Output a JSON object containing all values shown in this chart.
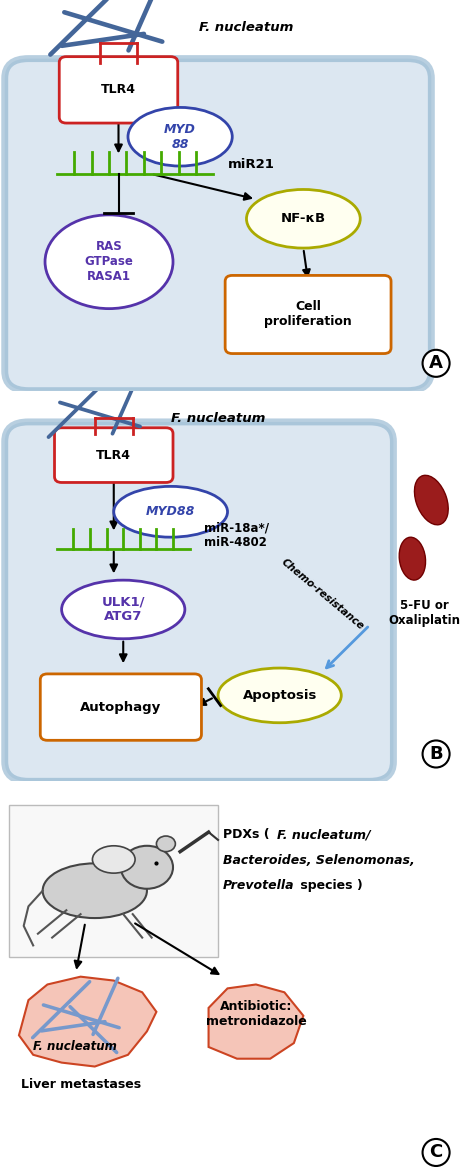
{
  "panel_A": {
    "cell_bg": "#c5d8e8",
    "cell_border": "#8ab0cc",
    "tlr4_color": "#cc2222",
    "myd88_color": "#3344aa",
    "myd88_fill": "#ffffff",
    "mirna_color": "#44aa00",
    "ras_color": "#5533aa",
    "ras_fill": "#ffffff",
    "nfkb_color": "#aaaa00",
    "nfkb_fill": "#fffff0",
    "cell_prolif_color": "#cc6600",
    "cell_prolif_fill": "#ffffff",
    "fn_color": "#446699",
    "label_A": "A",
    "fn_label": "F. nucleatum",
    "tlr4_label": "TLR4",
    "myd88_label": "MYD\n88",
    "mirna_label": "miR21",
    "ras_label": "RAS\nGTPase\nRASA1",
    "nfkb_label": "NF-κB",
    "cell_prolif_label": "Cell\nproliferation"
  },
  "panel_B": {
    "cell_bg": "#c5d8e8",
    "cell_border": "#8ab0cc",
    "tlr4_color": "#cc2222",
    "myd88_color": "#3344aa",
    "myd88_fill": "#ffffff",
    "mirna_color": "#44aa00",
    "ulk1_color": "#5533aa",
    "ulk1_fill": "#ffffff",
    "apoptosis_color": "#aaaa00",
    "apoptosis_fill": "#fffff0",
    "autophagy_color": "#cc6600",
    "autophagy_fill": "#ffffff",
    "fn_color": "#446699",
    "drug_color": "#881111",
    "label_B": "B",
    "fn_label": "F. nucleatum",
    "tlr4_label": "TLR4",
    "myd88_label": "MYD88",
    "mirna_label": "miR-18a*/\nmiR-4802",
    "ulk1_label": "ULK1/\nATG7",
    "apoptosis_label": "Apoptosis",
    "autophagy_label": "Autophagy",
    "chemores_label": "Chemo-resistance",
    "drug_label": "5-FU or\nOxaliplatin"
  },
  "panel_C": {
    "fn_label": "F. nucleatum",
    "pdx_label_normal": "PDXs (",
    "pdx_label_italic": "F. nucleatum/\nBacteroides, Selenomonas,\nPrevotella",
    "pdx_label_end": " species )",
    "liver_meta_label": "Liver metastases",
    "antibiotic_label": "Antibiotic:\nmetronidazole",
    "organ_fill": "#f5c5b8",
    "organ_border": "#cc4422",
    "fn_color": "#7799cc",
    "label_C": "C"
  },
  "bg_color": "#ffffff",
  "figsize": [
    4.74,
    11.72
  ],
  "dpi": 100
}
